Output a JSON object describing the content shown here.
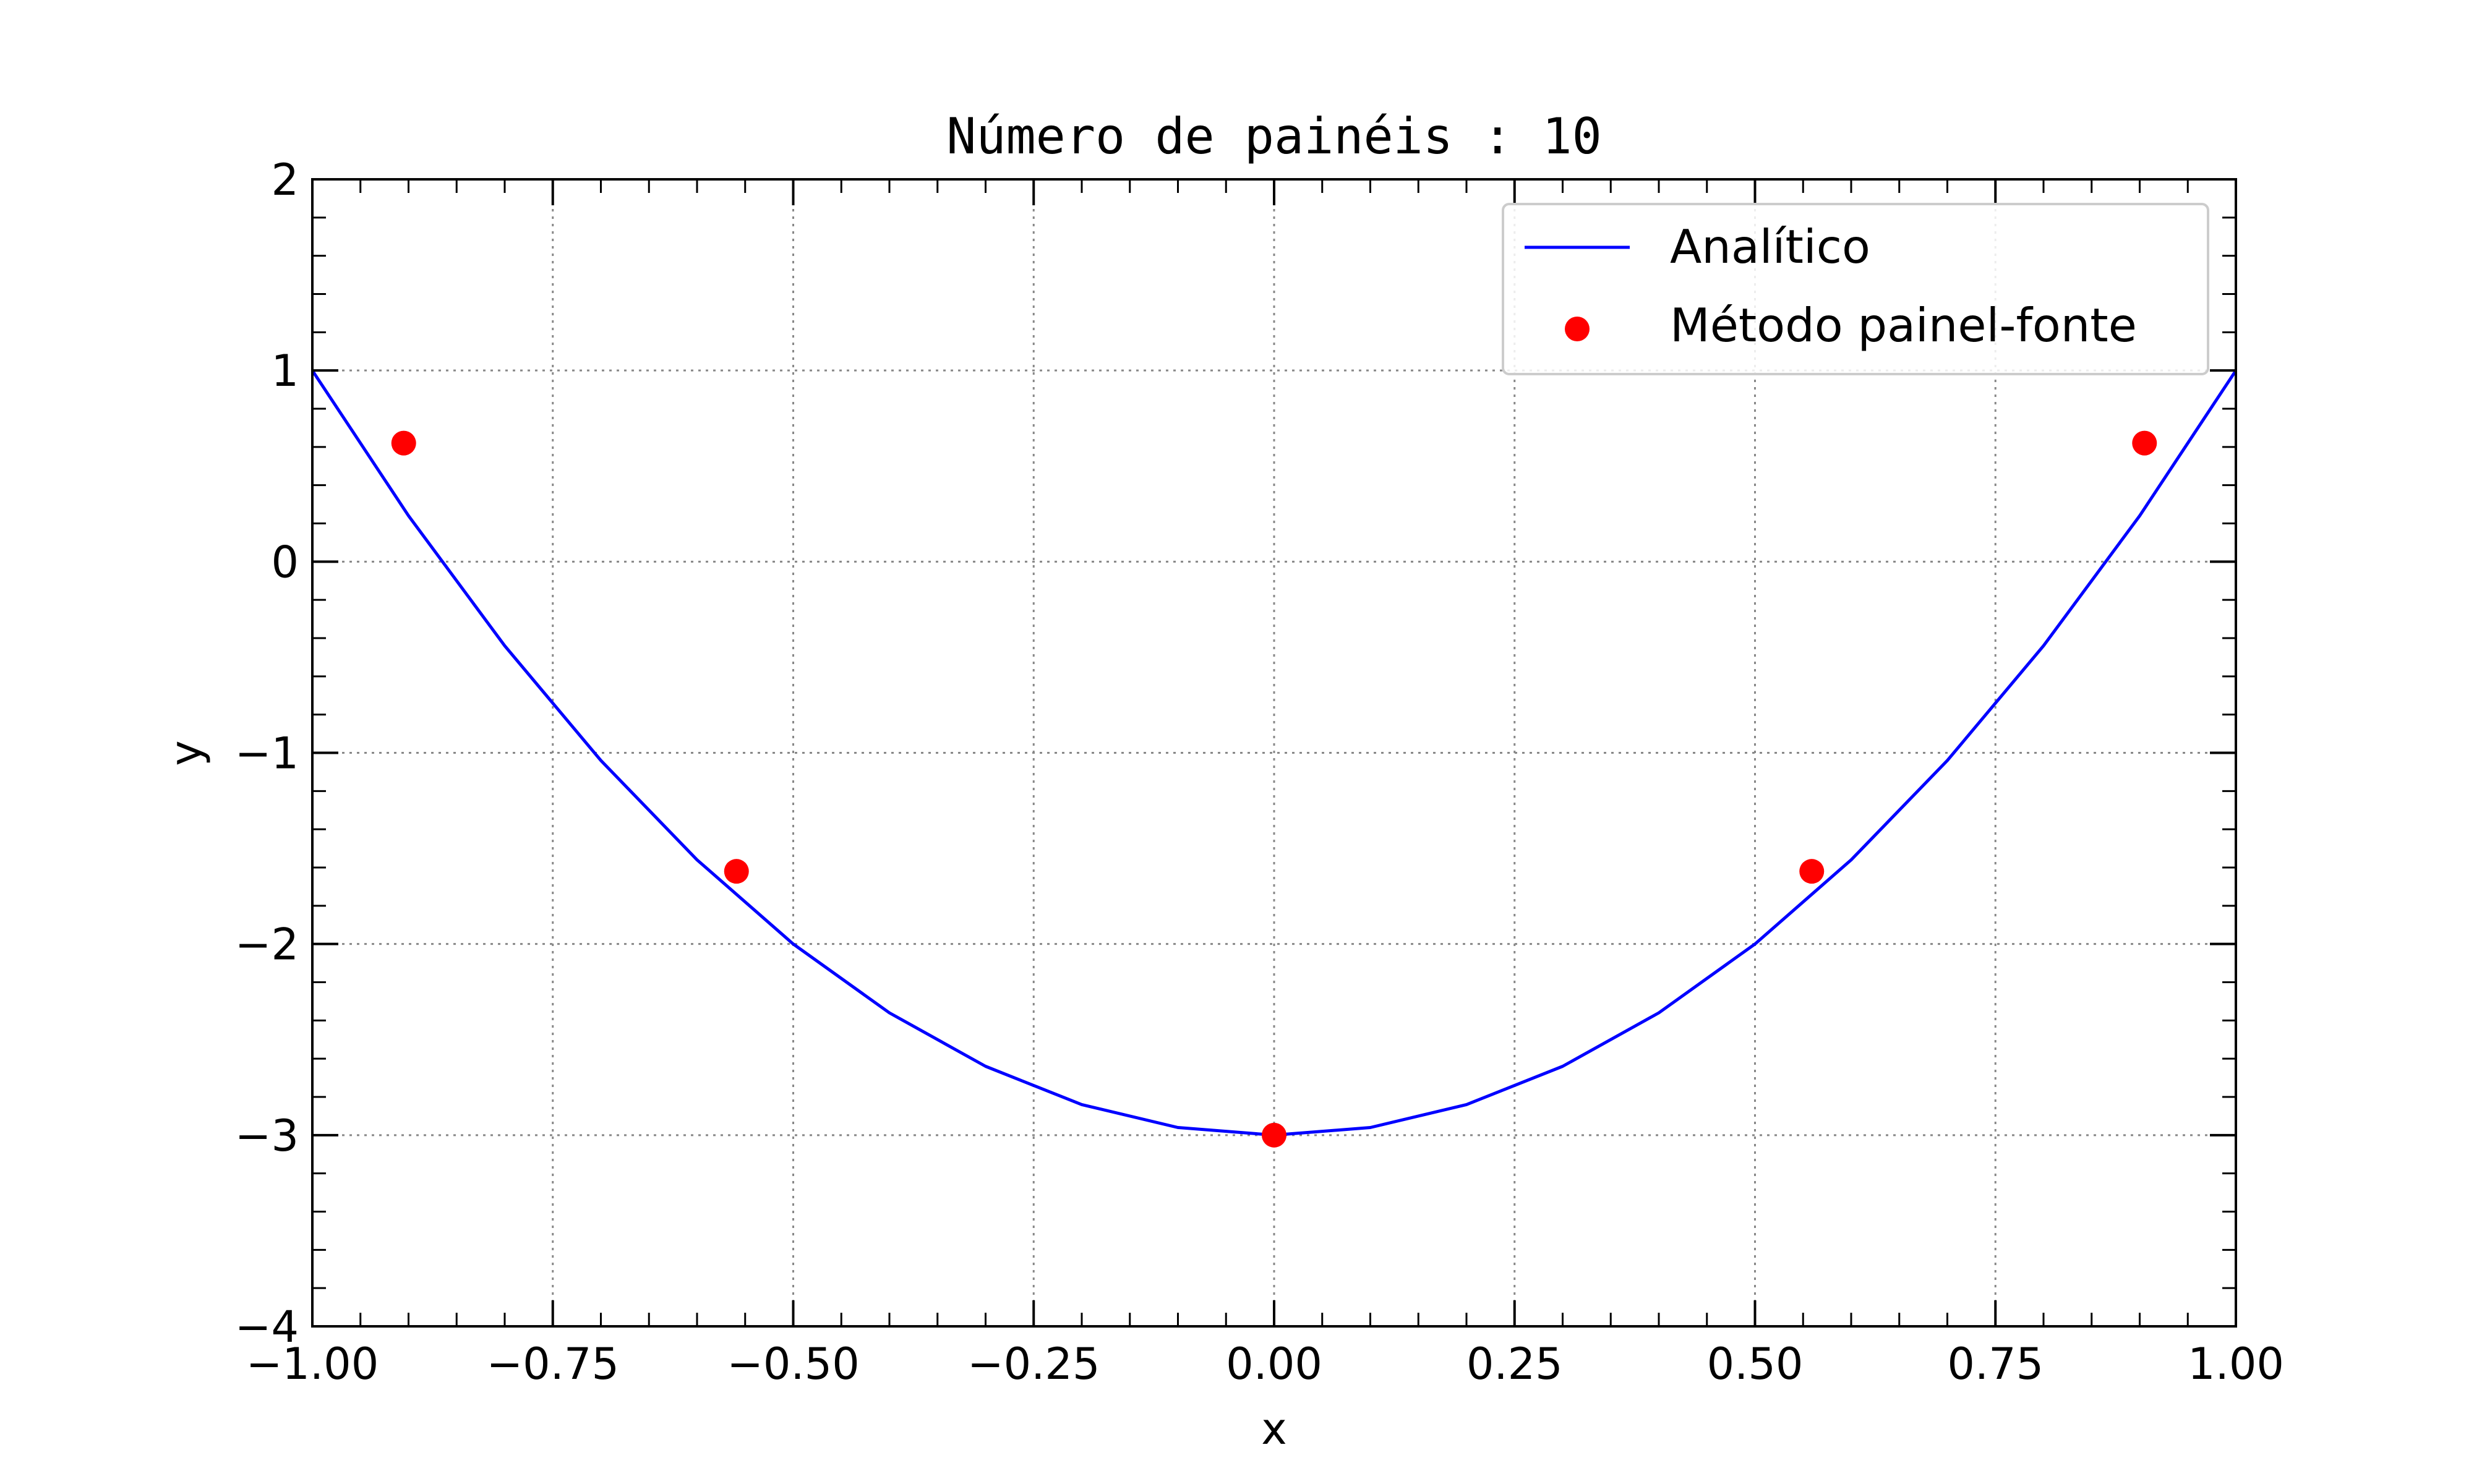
{
  "chart_data": {
    "type": "line",
    "title": "Número de painéis : 10",
    "xlabel": "x",
    "ylabel": "y",
    "xlim": [
      -1.0,
      1.0
    ],
    "ylim": [
      -4,
      2
    ],
    "grid": true,
    "grid_style": "dotted",
    "legend_position": "top-right",
    "xticks": [
      -1.0,
      -0.75,
      -0.5,
      -0.25,
      0.0,
      0.25,
      0.5,
      0.75,
      1.0
    ],
    "xtick_labels": [
      "−1.00",
      "−0.75",
      "−0.50",
      "−0.25",
      "0.00",
      "0.25",
      "0.50",
      "0.75",
      "1.00"
    ],
    "yticks": [
      -4,
      -3,
      -2,
      -1,
      0,
      1,
      2
    ],
    "ytick_labels": [
      "−4",
      "−3",
      "−2",
      "−1",
      "0",
      "1",
      "2"
    ],
    "series": [
      {
        "name": "Analítico",
        "kind": "line",
        "color": "#0000ff",
        "x": [
          -1.0,
          -0.9,
          -0.8,
          -0.7,
          -0.6,
          -0.5,
          -0.4,
          -0.3,
          -0.2,
          -0.1,
          0.0,
          0.1,
          0.2,
          0.3,
          0.4,
          0.5,
          0.6,
          0.7,
          0.8,
          0.9,
          1.0
        ],
        "y": [
          1.0,
          0.24,
          -0.44,
          -1.04,
          -1.56,
          -2.0,
          -2.36,
          -2.64,
          -2.84,
          -2.96,
          -3.0,
          -2.96,
          -2.84,
          -2.64,
          -2.36,
          -2.0,
          -1.56,
          -1.04,
          -0.44,
          0.24,
          1.0
        ]
      },
      {
        "name": "Método painel-fonte",
        "kind": "scatter",
        "color": "#ff0000",
        "x": [
          -0.905,
          -0.559,
          0.0,
          0.559,
          0.905
        ],
        "y": [
          0.62,
          -1.62,
          -3.0,
          -1.62,
          0.62
        ]
      }
    ]
  }
}
